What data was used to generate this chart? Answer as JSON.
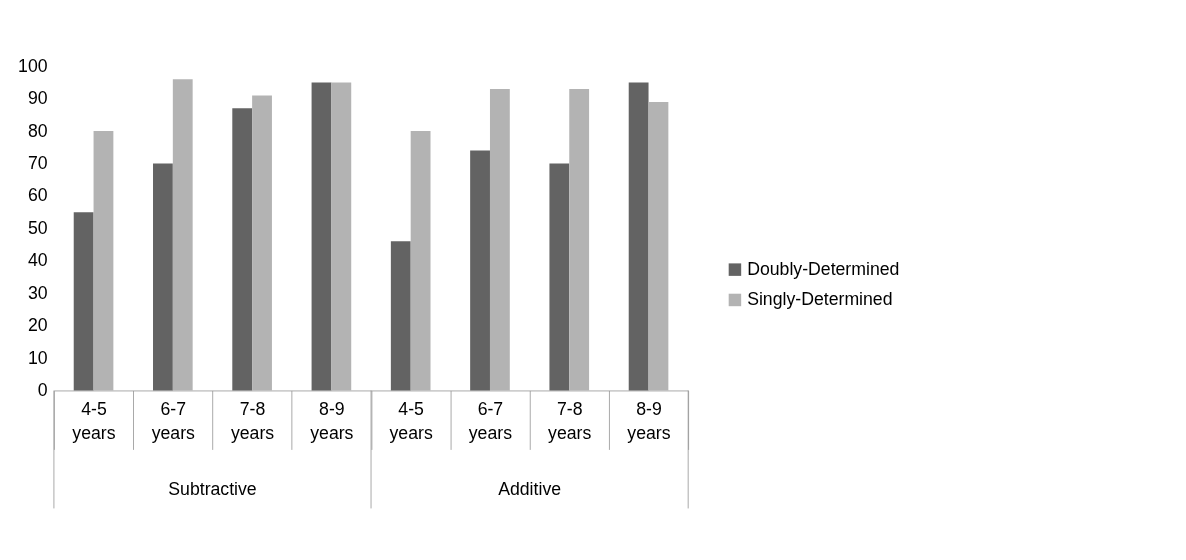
{
  "chart_data": {
    "type": "bar",
    "categories": [
      "4-5 years",
      "6-7 years",
      "7-8 years",
      "8-9 years",
      "4-5 years",
      "6-7 years",
      "7-8 years",
      "8-9 years"
    ],
    "series": [
      {
        "name": "Doubly-Determined",
        "color": "#636363",
        "values": [
          55,
          70,
          87,
          95,
          46,
          74,
          70,
          95
        ]
      },
      {
        "name": "Singly-Determined",
        "color": "#b3b3b3",
        "values": [
          80,
          96,
          91,
          95,
          80,
          93,
          93,
          89
        ]
      }
    ],
    "annotations": [
      "Subtractive",
      "Additive"
    ],
    "ylim": [
      0,
      100
    ],
    "yticks": [
      0,
      10,
      20,
      30,
      40,
      50,
      60,
      70,
      80,
      90,
      100
    ],
    "grid": false,
    "legend": "right"
  }
}
